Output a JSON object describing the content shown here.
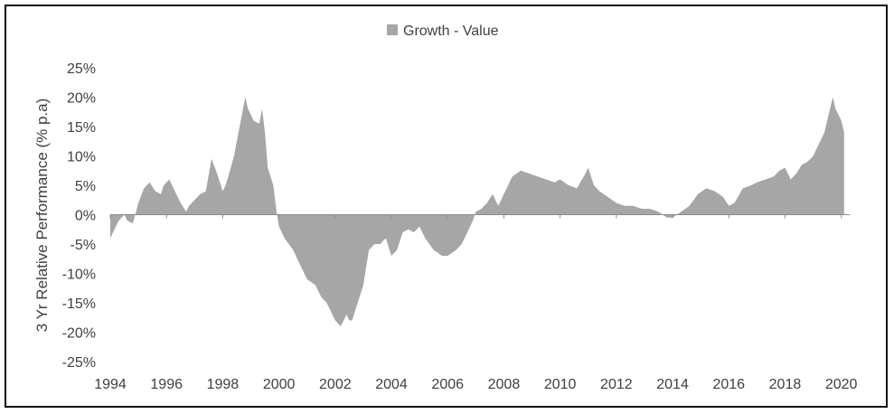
{
  "chart_data": {
    "type": "area",
    "title": "",
    "xlabel": "",
    "ylabel": "3 Yr Relative Performance (% p.a)",
    "legend": {
      "position": "top-center",
      "entries": [
        "Growth - Value"
      ]
    },
    "grid": false,
    "color": "#a6a6a6",
    "xlim": [
      1994,
      2020.3
    ],
    "ylim": [
      -25,
      25
    ],
    "x_ticks": [
      1994,
      1996,
      1998,
      2000,
      2002,
      2004,
      2006,
      2008,
      2010,
      2012,
      2014,
      2016,
      2018,
      2020
    ],
    "x_tick_labels": [
      "1994",
      "1996",
      "1998",
      "2000",
      "2002",
      "2004",
      "2006",
      "2008",
      "2010",
      "2012",
      "2014",
      "2016",
      "2018",
      "2020"
    ],
    "y_ticks": [
      25,
      20,
      15,
      10,
      5,
      0,
      -5,
      -10,
      -15,
      -20,
      -25
    ],
    "y_tick_labels": [
      "25%",
      "20%",
      "15%",
      "10%",
      "5%",
      "0%",
      "-5%",
      "-10%",
      "-15%",
      "-20%",
      "-25%"
    ],
    "series": [
      {
        "name": "Growth - Value",
        "x": [
          1994.0,
          1994.1,
          1994.3,
          1994.5,
          1994.6,
          1994.8,
          1995.0,
          1995.2,
          1995.4,
          1995.6,
          1995.8,
          1995.9,
          1996.1,
          1996.3,
          1996.5,
          1996.7,
          1996.8,
          1997.0,
          1997.2,
          1997.4,
          1997.6,
          1997.8,
          1998.0,
          1998.1,
          1998.2,
          1998.4,
          1998.6,
          1998.8,
          1998.9,
          1999.0,
          1999.1,
          1999.3,
          1999.4,
          1999.5,
          1999.6,
          1999.8,
          1999.9,
          2000.0,
          2000.2,
          2000.5,
          2000.8,
          2001.0,
          2001.3,
          2001.5,
          2001.7,
          2001.9,
          2002.0,
          2002.2,
          2002.4,
          2002.5,
          2002.6,
          2002.8,
          2003.0,
          2003.2,
          2003.4,
          2003.6,
          2003.8,
          2004.0,
          2004.2,
          2004.4,
          2004.6,
          2004.8,
          2005.0,
          2005.2,
          2005.5,
          2005.8,
          2006.0,
          2006.3,
          2006.5,
          2006.7,
          2006.9,
          2007.0,
          2007.2,
          2007.4,
          2007.6,
          2007.8,
          2008.0,
          2008.3,
          2008.6,
          2008.9,
          2009.2,
          2009.5,
          2009.8,
          2010.0,
          2010.3,
          2010.6,
          2010.9,
          2011.0,
          2011.2,
          2011.4,
          2011.7,
          2012.0,
          2012.3,
          2012.6,
          2012.9,
          2013.2,
          2013.5,
          2013.8,
          2014.0,
          2014.3,
          2014.6,
          2014.9,
          2015.2,
          2015.5,
          2015.8,
          2016.0,
          2016.2,
          2016.5,
          2016.8,
          2017.0,
          2017.3,
          2017.6,
          2017.8,
          2018.0,
          2018.2,
          2018.4,
          2018.6,
          2018.8,
          2019.0,
          2019.2,
          2019.4,
          2019.5,
          2019.6,
          2019.7,
          2019.8,
          2019.9,
          2020.0,
          2020.1
        ],
        "values": [
          -4,
          -3,
          -1,
          0,
          -1,
          -1.5,
          2,
          4.5,
          5.5,
          4,
          3.5,
          5,
          6,
          4,
          2,
          0.5,
          1.5,
          2.5,
          3.5,
          4,
          9.5,
          7,
          4,
          5,
          6.5,
          10,
          15,
          20,
          18,
          17,
          16,
          15.5,
          18,
          14,
          8,
          5,
          1,
          -2,
          -4,
          -6,
          -9,
          -11,
          -12,
          -14,
          -15,
          -17,
          -18,
          -19,
          -17,
          -18,
          -18,
          -15,
          -12,
          -6,
          -5,
          -5,
          -4,
          -7,
          -6,
          -3,
          -2.5,
          -3,
          -2,
          -4,
          -6,
          -7,
          -7,
          -6,
          -5,
          -3,
          -1,
          0.5,
          1,
          2,
          3.5,
          1.5,
          3.5,
          6.5,
          7.5,
          7,
          6.5,
          6,
          5.5,
          6,
          5,
          4.5,
          7,
          8,
          5,
          4,
          3,
          2,
          1.5,
          1.5,
          1,
          1,
          0.5,
          -0.5,
          -0.5,
          0.5,
          1.5,
          3.5,
          4.5,
          4,
          3,
          1.5,
          2,
          4.5,
          5,
          5.5,
          6,
          6.5,
          7.5,
          8,
          6,
          7,
          8.5,
          9,
          10,
          12,
          14,
          16,
          18,
          20,
          18,
          17,
          16,
          14
        ]
      }
    ]
  }
}
